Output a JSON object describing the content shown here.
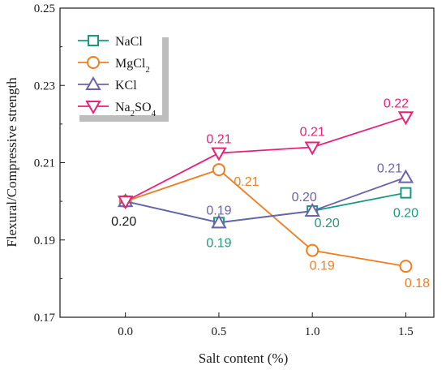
{
  "chart_data": {
    "type": "line",
    "xlabel": "Salt content (%)",
    "ylabel": "Flexural/Compressive strength",
    "xlim": [
      -0.35,
      1.65
    ],
    "ylim": [
      0.17,
      0.25
    ],
    "x_ticks": [
      0.0,
      0.5,
      1.0,
      1.5
    ],
    "x_tick_labels": [
      "0.0",
      "0.5",
      "1.0",
      "1.5"
    ],
    "y_ticks": [
      0.17,
      0.19,
      0.21,
      0.23,
      0.25
    ],
    "y_tick_labels": [
      "0.17",
      "0.19",
      "0.21",
      "0.23",
      "0.25"
    ],
    "grid": false,
    "legend_position": "top-left",
    "x": [
      0.0,
      0.5,
      1.0,
      1.5
    ],
    "series": [
      {
        "name": "NaCl",
        "legend_base": "NaCl",
        "legend_sub": "",
        "legend_tail": "",
        "legend_sub2": "",
        "color": "#1a9a7a",
        "marker": "square",
        "values": [
          0.2,
          0.1945,
          0.1975,
          0.2022
        ],
        "labels": [
          "",
          "0.19",
          "0.20",
          "0.20"
        ]
      },
      {
        "name": "MgCl2",
        "legend_base": "MgCl",
        "legend_sub": "2",
        "legend_tail": "",
        "legend_sub2": "",
        "color": "#f07d1e",
        "marker": "circle",
        "values": [
          0.2,
          0.2082,
          0.1873,
          0.1832
        ],
        "labels": [
          "",
          "0.21",
          "0.19",
          "0.18"
        ]
      },
      {
        "name": "KCl",
        "legend_base": "KCl",
        "legend_sub": "",
        "legend_tail": "",
        "legend_sub2": "",
        "color": "#6b63ad",
        "marker": "triangle-up",
        "values": [
          0.2,
          0.1945,
          0.1975,
          0.2062
        ],
        "labels": [
          "",
          "0.19",
          "0.20",
          "0.21"
        ]
      },
      {
        "name": "Na2SO4",
        "legend_base": "Na",
        "legend_sub": "2",
        "legend_tail": "SO",
        "legend_sub2": "4",
        "color": "#e8217a",
        "marker": "triangle-down",
        "values": [
          0.2,
          0.2125,
          0.214,
          0.2218
        ],
        "labels": [
          "",
          "0.21",
          "0.21",
          "0.22"
        ]
      }
    ],
    "shared_label": {
      "x": 0.0,
      "text": "0.20",
      "color": "#1a1a1a"
    }
  }
}
